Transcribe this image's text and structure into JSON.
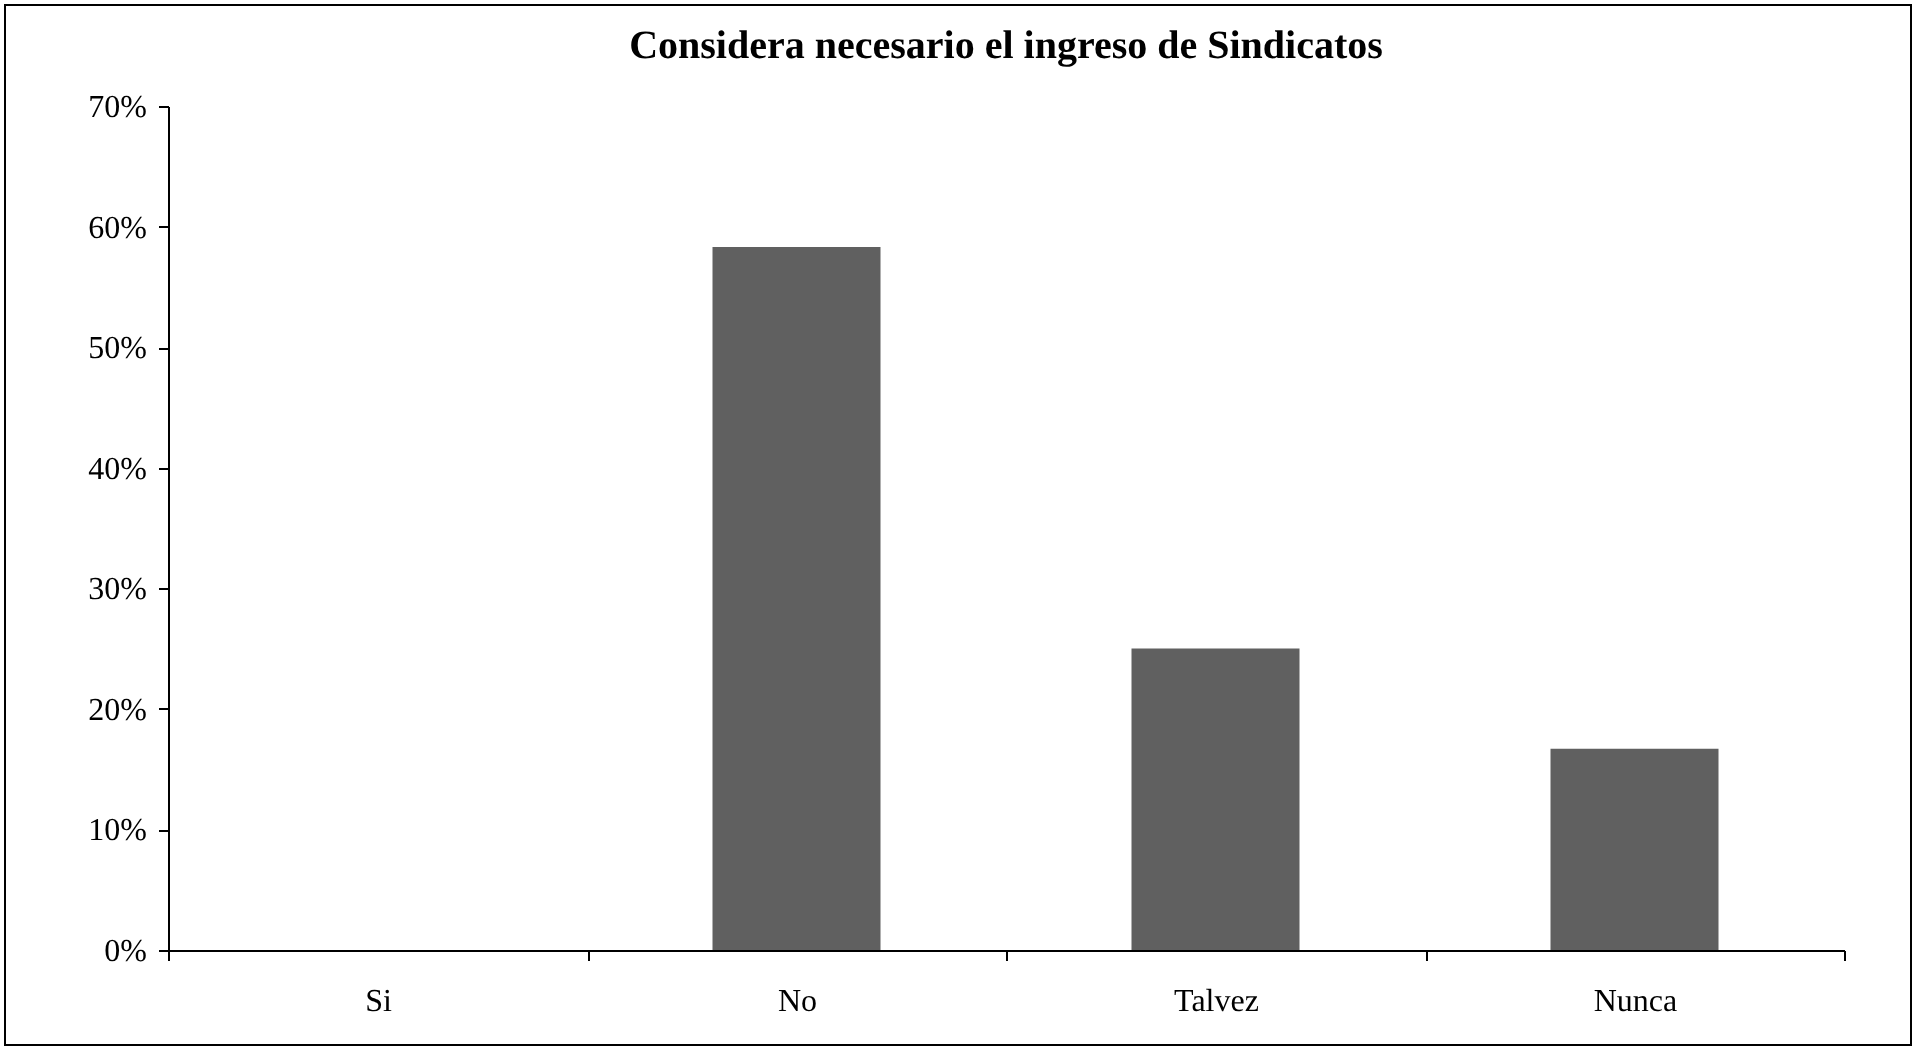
{
  "chart_data": {
    "type": "bar",
    "title": "Considera necesario el ingreso de Sindicatos",
    "categories": [
      "Si",
      "No",
      "Talvez",
      "Nunca"
    ],
    "values": [
      0,
      58.3,
      25,
      16.7
    ],
    "color": "#606060",
    "ylim": [
      0,
      70
    ],
    "yticks": [
      {
        "value": 0,
        "label": "0%"
      },
      {
        "value": 10,
        "label": "10%"
      },
      {
        "value": 20,
        "label": "20%"
      },
      {
        "value": 30,
        "label": "30%"
      },
      {
        "value": 40,
        "label": "40%"
      },
      {
        "value": 50,
        "label": "50%"
      },
      {
        "value": 60,
        "label": "60%"
      },
      {
        "value": 70,
        "label": "70%"
      }
    ],
    "grid": false
  }
}
